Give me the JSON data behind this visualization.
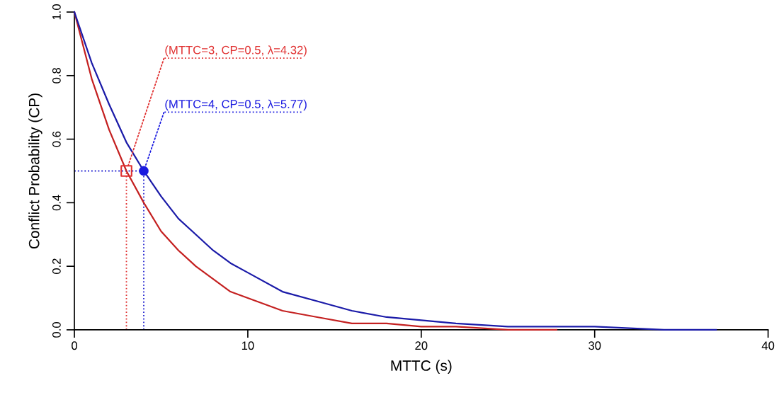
{
  "chart_data": {
    "type": "line",
    "xlabel": "MTTC (s)",
    "ylabel": "Conflict Probability (CP)",
    "xlim": [
      0,
      40
    ],
    "ylim": [
      0,
      1
    ],
    "xticks": [
      0,
      10,
      20,
      30,
      40
    ],
    "yticks": [
      {
        "value": 0,
        "label": "0.0"
      },
      {
        "value": 0.2,
        "label": "0.2"
      },
      {
        "value": 0.4,
        "label": "0.4"
      },
      {
        "value": 0.6,
        "label": "0.6"
      },
      {
        "value": 0.8,
        "label": "0.8"
      },
      {
        "value": 1,
        "label": "1.0"
      }
    ],
    "grid": false,
    "legend": false,
    "series": [
      {
        "color": "#c42020",
        "marker": "none",
        "x": [
          0,
          1,
          2,
          3,
          4,
          5,
          6,
          7,
          8,
          9,
          10,
          12,
          14,
          16,
          18,
          20,
          22,
          25,
          27.8
        ],
        "values": [
          1,
          0.79,
          0.63,
          0.5,
          0.4,
          0.31,
          0.25,
          0.2,
          0.16,
          0.12,
          0.1,
          0.06,
          0.04,
          0.02,
          0.02,
          0.01,
          0.01,
          0.0,
          0.0
        ]
      },
      {
        "color": "#1a1aa8",
        "marker": "none",
        "x": [
          0,
          1,
          2,
          3,
          4,
          5,
          6,
          7,
          8,
          9,
          10,
          12,
          14,
          16,
          18,
          20,
          22,
          25,
          28,
          30,
          34,
          37
        ],
        "values": [
          1,
          0.84,
          0.71,
          0.59,
          0.5,
          0.42,
          0.35,
          0.3,
          0.25,
          0.21,
          0.18,
          0.12,
          0.09,
          0.06,
          0.04,
          0.03,
          0.02,
          0.01,
          0.01,
          0.01,
          0.0,
          0.0
        ]
      },
      {
        "type": "scatter",
        "color": "#e03030",
        "marker": "square",
        "x": [
          3
        ],
        "values": [
          0.5
        ]
      },
      {
        "type": "scatter",
        "color": "#1a1ae0",
        "marker": "circle",
        "x": [
          4
        ],
        "values": [
          0.5
        ]
      }
    ],
    "ref_lines": [
      {
        "axis": "y",
        "value": 0.5,
        "color": "#2020d0",
        "line_style": "dotted"
      },
      {
        "axis": "x",
        "value": 3,
        "color": "#e03030",
        "line_style": "dotted"
      },
      {
        "axis": "x",
        "value": 4,
        "color": "#2020d0",
        "line_style": "dotted"
      }
    ],
    "annotations": [
      {
        "text": "(MTTC=3, CP=0.5, λ=4.32)",
        "x": 3,
        "y": 0.5
      },
      {
        "text": "(MTTC=4, CP=0.5, λ=5.77)",
        "x": 4,
        "y": 0.5
      }
    ]
  }
}
